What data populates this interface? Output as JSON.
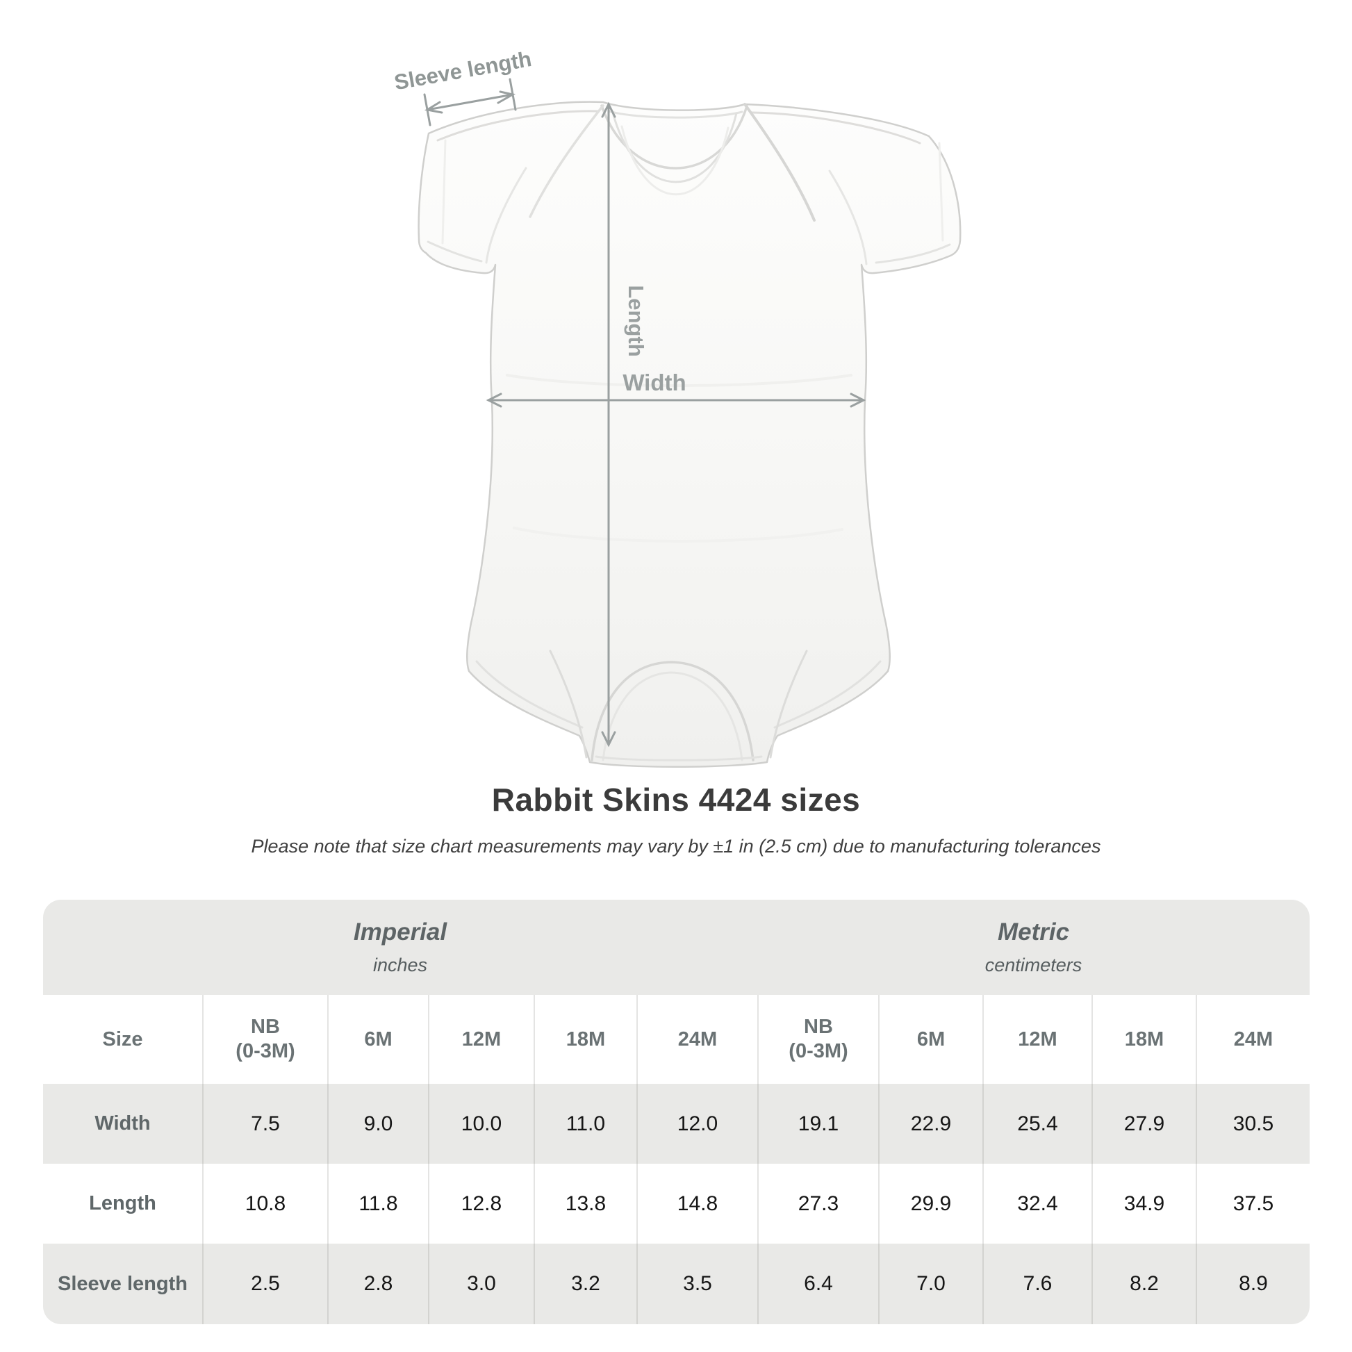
{
  "title": "Rabbit Skins 4424 sizes",
  "subtitle": "Please note that size chart measurements may vary by ±1 in (2.5 cm) due to manufacturing tolerances",
  "diagram": {
    "sleeve_label": "Sleeve length",
    "length_label": "Length",
    "width_label": "Width",
    "annotation_color": "#9aa0a0",
    "garment_color": "#f7f7f5"
  },
  "table": {
    "unit_groups": [
      {
        "label": "Imperial",
        "sublabel": "inches"
      },
      {
        "label": "Metric",
        "sublabel": "centimeters"
      }
    ],
    "size_label": "Size",
    "columns": [
      "NB\n(0-3M)",
      "6M",
      "12M",
      "18M",
      "24M",
      "NB\n(0-3M)",
      "6M",
      "12M",
      "18M",
      "24M"
    ],
    "rows": [
      {
        "label": "Width",
        "values": [
          "7.5",
          "9.0",
          "10.0",
          "11.0",
          "12.0",
          "19.1",
          "22.9",
          "25.4",
          "27.9",
          "30.5"
        ]
      },
      {
        "label": "Length",
        "values": [
          "10.8",
          "11.8",
          "12.8",
          "13.8",
          "14.8",
          "27.3",
          "29.9",
          "32.4",
          "34.9",
          "37.5"
        ]
      },
      {
        "label": "Sleeve length",
        "values": [
          "2.5",
          "2.8",
          "3.0",
          "3.2",
          "3.5",
          "6.4",
          "7.0",
          "7.6",
          "8.2",
          "8.9"
        ]
      }
    ],
    "band_color": "#e9e9e7"
  },
  "chart_data": {
    "type": "table",
    "title": "Rabbit Skins 4424 sizes",
    "note": "Please note that size chart measurements may vary by ±1 in (2.5 cm) due to manufacturing tolerances",
    "units": [
      "inches",
      "centimeters"
    ],
    "sizes": [
      "NB (0-3M)",
      "6M",
      "12M",
      "18M",
      "24M"
    ],
    "imperial_inches": {
      "Width": [
        7.5,
        9.0,
        10.0,
        11.0,
        12.0
      ],
      "Length": [
        10.8,
        11.8,
        12.8,
        13.8,
        14.8
      ],
      "Sleeve length": [
        2.5,
        2.8,
        3.0,
        3.2,
        3.5
      ]
    },
    "metric_centimeters": {
      "Width": [
        19.1,
        22.9,
        25.4,
        27.9,
        30.5
      ],
      "Length": [
        27.3,
        29.9,
        32.4,
        34.9,
        37.5
      ],
      "Sleeve length": [
        6.4,
        7.0,
        7.6,
        8.2,
        8.9
      ]
    }
  }
}
